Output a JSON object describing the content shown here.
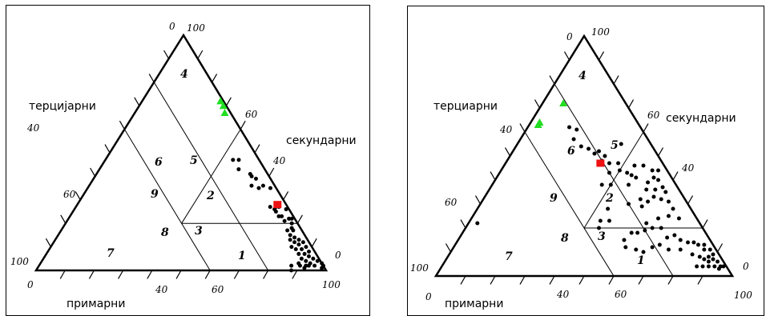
{
  "chart_data": [
    {
      "type": "scatter",
      "subtype": "ternary",
      "axis_titles": {
        "tertiary": "терцијарни",
        "secondary": "секундарни",
        "primary": "примарни"
      },
      "tick_labels": {
        "tertiary": [
          "100",
          "60",
          "40",
          "0"
        ],
        "secondary": [
          "100",
          "60",
          "40",
          "0"
        ],
        "primary": [
          "0",
          "40",
          "60",
          "100"
        ]
      },
      "region_labels": [
        "1",
        "2",
        "3",
        "4",
        "5",
        "6",
        "7",
        "8",
        "9"
      ],
      "series": [
        {
          "marker": "circle",
          "color": "#000000",
          "points": [
            [
              6,
              53,
              41
            ],
            [
              9,
              44,
              47
            ],
            [
              7,
              46,
              47
            ],
            [
              9,
              48,
              43
            ],
            [
              4,
              60,
              36
            ],
            [
              6,
              54,
              40
            ],
            [
              8,
              56,
              36
            ],
            [
              5,
              56,
              39
            ],
            [
              6,
              59,
              35
            ],
            [
              2,
              63,
              35
            ],
            [
              6,
              67,
              27
            ],
            [
              5,
              69,
              26
            ],
            [
              4,
              69,
              27
            ],
            [
              5,
              70,
              25
            ],
            [
              3,
              70,
              27
            ],
            [
              5,
              72,
              23
            ],
            [
              4,
              73,
              23
            ],
            [
              1,
              73,
              26
            ],
            [
              2,
              76,
              22
            ],
            [
              4,
              75,
              21
            ],
            [
              1,
              77,
              22
            ],
            [
              2,
              78,
              20
            ],
            [
              5,
              78,
              17
            ],
            [
              3,
              79,
              18
            ],
            [
              5,
              80,
              15
            ],
            [
              3,
              80,
              17
            ],
            [
              6,
              81,
              13
            ],
            [
              4,
              82,
              14
            ],
            [
              7,
              83,
              10
            ],
            [
              5,
              83,
              12
            ],
            [
              3,
              84,
              13
            ],
            [
              6,
              85,
              9
            ],
            [
              4,
              85,
              11
            ],
            [
              2,
              86,
              12
            ],
            [
              6,
              87,
              7
            ],
            [
              4,
              87,
              9
            ],
            [
              2,
              88,
              10
            ],
            [
              6,
              89,
              5
            ],
            [
              4,
              89,
              7
            ],
            [
              2,
              90,
              8
            ],
            [
              5,
              91,
              4
            ],
            [
              3,
              91,
              6
            ],
            [
              4,
              93,
              3
            ],
            [
              2,
              93,
              5
            ],
            [
              1,
              95,
              4
            ],
            [
              3,
              95,
              2
            ],
            [
              0,
              97,
              3
            ],
            [
              0,
              98,
              2
            ],
            [
              1,
              98,
              1
            ],
            [
              11,
              87,
              2
            ],
            [
              12,
              88,
              0
            ],
            [
              8,
              89,
              3
            ],
            [
              6,
              92,
              2
            ],
            [
              5,
              93,
              2
            ],
            [
              7,
              92,
              1
            ],
            [
              8,
              90,
              2
            ]
          ]
        },
        {
          "marker": "triangle",
          "color": "#22dd22",
          "points": [
            [
              1,
              27,
              72
            ],
            [
              1,
              29,
              70
            ],
            [
              2,
              31,
              67
            ]
          ]
        },
        {
          "marker": "square",
          "color": "#ee1111",
          "points": [
            [
              3,
              69,
              28
            ]
          ]
        }
      ]
    },
    {
      "type": "scatter",
      "subtype": "ternary",
      "axis_titles": {
        "tertiary": "терциарни",
        "secondary": "секундарни",
        "primary": "примарни"
      },
      "tick_labels": {
        "tertiary": [
          "100",
          "60",
          "40",
          "0"
        ],
        "secondary": [
          "100",
          "60",
          "40",
          "0"
        ],
        "primary": [
          "0",
          "40",
          "60",
          "100"
        ]
      },
      "region_labels": [
        "1",
        "2",
        "3",
        "4",
        "5",
        "6",
        "7",
        "8",
        "9"
      ],
      "series": [
        {
          "marker": "circle",
          "color": "#000000",
          "points": [
            [
              24,
              14,
              62
            ],
            [
              22,
              17,
              61
            ],
            [
              24,
              22,
              54
            ],
            [
              25,
              18,
              57
            ],
            [
              21,
              28,
              51
            ],
            [
              22,
              25,
              53
            ],
            [
              19,
              29,
              52
            ],
            [
              20,
              32,
              48
            ],
            [
              18,
              32,
              50
            ],
            [
              18,
              35,
              47
            ],
            [
              15,
              38,
              47
            ],
            [
              16,
              40,
              44
            ],
            [
              14,
              43,
              43
            ],
            [
              13,
              45,
              42
            ],
            [
              12,
              47,
              41
            ],
            [
              16,
              46,
              38
            ],
            [
              22,
              40,
              38
            ],
            [
              25,
              37,
              38
            ],
            [
              20,
              37,
              43
            ],
            [
              10,
              44,
              46
            ],
            [
              7,
              47,
              46
            ],
            [
              5,
              51,
              44
            ],
            [
              9,
              52,
              39
            ],
            [
              6,
              53,
              41
            ],
            [
              5,
              55,
              40
            ],
            [
              11,
              53,
              36
            ],
            [
              8,
              56,
              36
            ],
            [
              10,
              57,
              33
            ],
            [
              15,
              53,
              32
            ],
            [
              13,
              56,
              31
            ],
            [
              16,
              55,
              29
            ],
            [
              20,
              50,
              30
            ],
            [
              8,
              60,
              32
            ],
            [
              5,
              60,
              35
            ],
            [
              5,
              58,
              37
            ],
            [
              3,
              53,
              44
            ],
            [
              6,
              63,
              31
            ],
            [
              6,
              66,
              28
            ],
            [
              9,
              66,
              25
            ],
            [
              13,
              63,
              24
            ],
            [
              17,
              63,
              20
            ],
            [
              20,
              61,
              19
            ],
            [
              23,
              59,
              18
            ],
            [
              25,
              57,
              18
            ],
            [
              29,
              56,
              15
            ],
            [
              30,
              58,
              12
            ],
            [
              27,
              62,
              11
            ],
            [
              25,
              65,
              10
            ],
            [
              21,
              67,
              12
            ],
            [
              18,
              69,
              13
            ],
            [
              14,
              70,
              16
            ],
            [
              11,
              72,
              17
            ],
            [
              10,
              75,
              15
            ],
            [
              12,
              77,
              11
            ],
            [
              8,
              78,
              14
            ],
            [
              6,
              80,
              14
            ],
            [
              9,
              82,
              9
            ],
            [
              5,
              82,
              13
            ],
            [
              3,
              84,
              13
            ],
            [
              7,
              85,
              8
            ],
            [
              4,
              85,
              11
            ],
            [
              2,
              87,
              11
            ],
            [
              6,
              87,
              7
            ],
            [
              4,
              88,
              8
            ],
            [
              2,
              89,
              9
            ],
            [
              5,
              89,
              6
            ],
            [
              3,
              90,
              7
            ],
            [
              4,
              92,
              4
            ],
            [
              2,
              92,
              6
            ],
            [
              2,
              94,
              4
            ],
            [
              1,
              95,
              4
            ],
            [
              3,
              94,
              3
            ],
            [
              10,
              86,
              4
            ],
            [
              8,
              88,
              4
            ],
            [
              6,
              90,
              4
            ],
            [
              30,
              47,
              23
            ],
            [
              33,
              44,
              23
            ],
            [
              35,
              45,
              20
            ],
            [
              28,
              44,
              28
            ],
            [
              10,
              35,
              55
            ],
            [
              75,
              3,
              22
            ],
            [
              6,
              70,
              24
            ],
            [
              14,
              66,
              20
            ],
            [
              16,
              73,
              11
            ],
            [
              18,
              60,
              22
            ]
          ]
        },
        {
          "marker": "triangle",
          "color": "#22dd22",
          "points": [
            [
              33,
              3,
              64
            ],
            [
              34,
              3,
              63
            ],
            [
              21,
              7,
              72
            ]
          ]
        },
        {
          "marker": "square",
          "color": "#ee1111",
          "points": [
            [
              21,
              32,
              47
            ]
          ]
        }
      ]
    }
  ]
}
